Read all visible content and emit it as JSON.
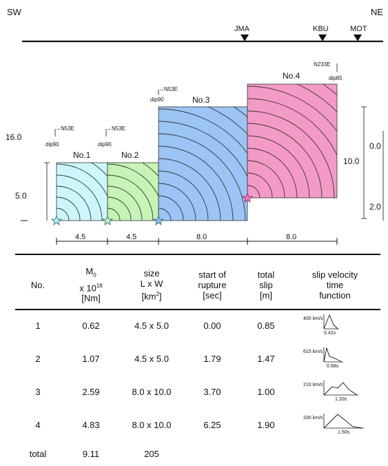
{
  "header": {
    "left": "SW",
    "right": "NE"
  },
  "stations": [
    "JMA",
    "KBU",
    "MOT"
  ],
  "segments": [
    {
      "label": "No.1",
      "strike": "→N53E",
      "dip": "dip90",
      "length": "4.5",
      "color": "#ccf6fa"
    },
    {
      "label": "No.2",
      "strike": "→N53E",
      "dip": "dip90",
      "length": "4.5",
      "color": "#c6f3b6"
    },
    {
      "label": "No.3",
      "strike": "→N53E",
      "dip": "dip90",
      "length": "8.0",
      "color": "#9cc4f5"
    },
    {
      "label": "No.4",
      "strike": "N233E",
      "dip": "dip85",
      "length": "8.0",
      "color": "#f49ac6"
    }
  ],
  "depth_labels": {
    "top": "16.0",
    "small": "5.0",
    "right_width": "10.0",
    "right_top": "0.0",
    "right_bottom": "2.0"
  },
  "table": {
    "headers": {
      "no": "No.",
      "m0_1": "M",
      "m0_sub": "0",
      "m0_2": "x 10",
      "m0_sup": "18",
      "m0_3": "[Nm]",
      "size_1": "size",
      "size_2": "L x W",
      "size_3": "[km",
      "size_sup": "2",
      "size_4": "]",
      "start_1": "start of",
      "start_2": "rupture",
      "start_3": "[sec]",
      "slip_1": "total",
      "slip_2": "slip",
      "slip_3": "[m]",
      "svf_1": "slip velocity",
      "svf_2": "time",
      "svf_3": "function"
    },
    "rows": [
      {
        "no": "1",
        "m0": "0.62",
        "size": "4.5 x 5.0",
        "start": "0.00",
        "slip": "0.85",
        "svf_amp": "400 km/s",
        "svf_dur": "0.42s"
      },
      {
        "no": "2",
        "m0": "1.07",
        "size": "4.5 x 5.0",
        "start": "1.79",
        "slip": "1.47",
        "svf_amp": "615 km/s",
        "svf_dur": "0.68s"
      },
      {
        "no": "3",
        "m0": "2.59",
        "size": "8.0 x 10.0",
        "start": "3.70",
        "slip": "1.00",
        "svf_amp": "210 km/s",
        "svf_dur": "1.20s"
      },
      {
        "no": "4",
        "m0": "4.83",
        "size": "8.0 x 10.0",
        "start": "6.25",
        "slip": "1.90",
        "svf_amp": "330 km/s",
        "svf_dur": "1.50s"
      }
    ],
    "total": {
      "label": "total",
      "m0": "9.11",
      "size": "205"
    }
  }
}
